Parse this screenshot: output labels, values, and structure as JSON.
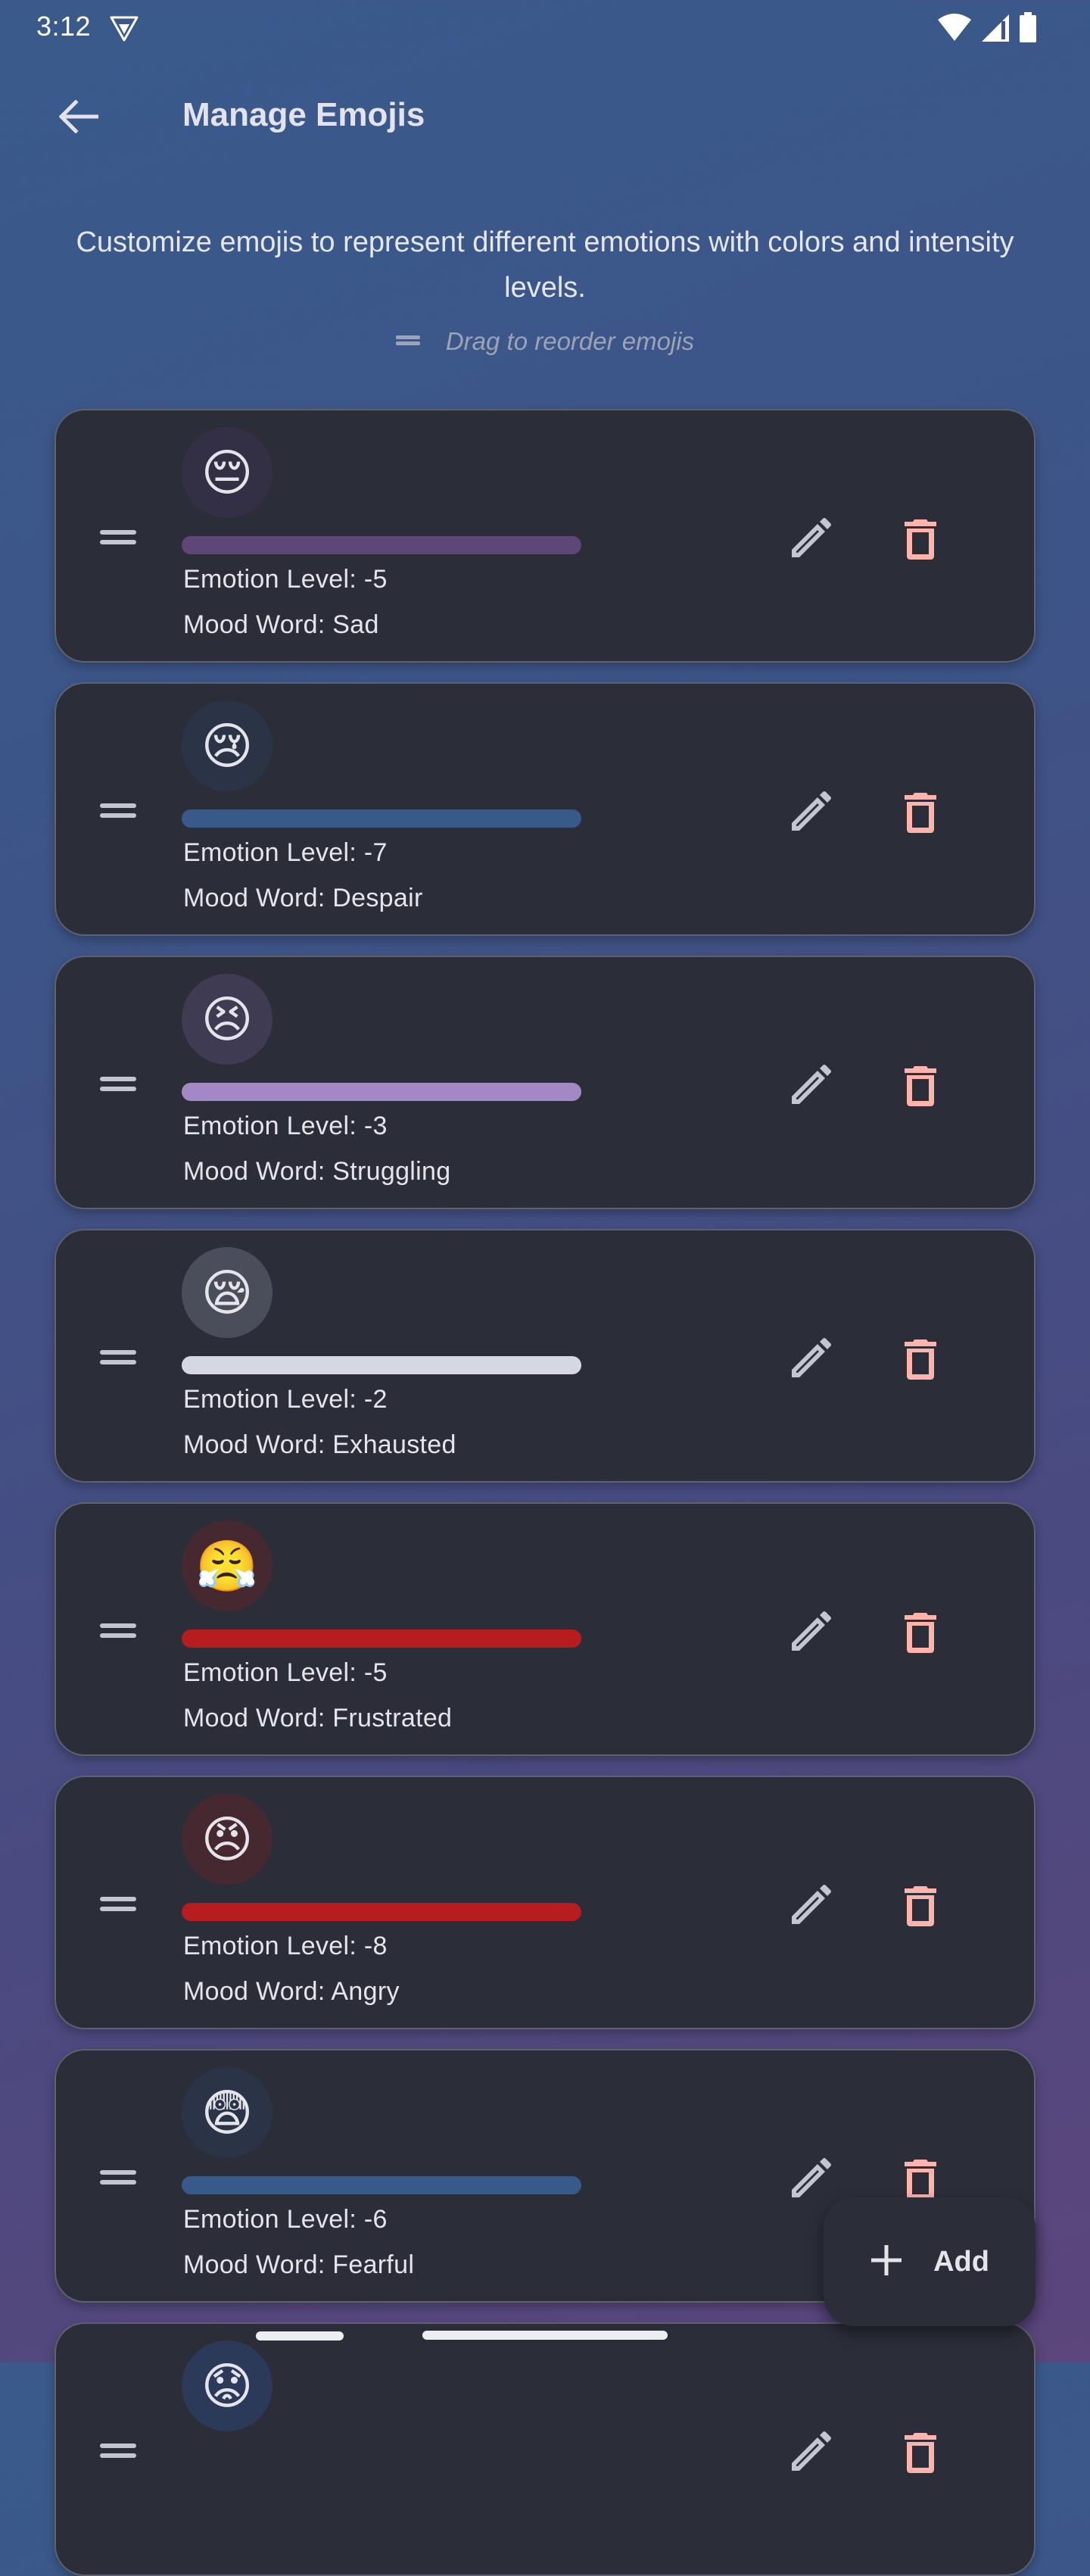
{
  "status_bar": {
    "time": "3:12",
    "icons": [
      "vpn-shield-icon",
      "wifi-icon",
      "cell-signal-icon",
      "battery-icon"
    ]
  },
  "app_bar": {
    "back_icon": "arrow-back-icon",
    "title": "Manage Emojis"
  },
  "intro": {
    "description": "Customize emojis to represent different emotions with colors and intensity levels.",
    "drag_hint": "Drag to reorder emojis",
    "drag_hint_icon": "drag-handle-icon"
  },
  "emojis": [
    {
      "emoji": "😔",
      "circle_bg": "#332f44",
      "bar_color": "#5e4676",
      "level_label": "Emotion Level: -5",
      "mood_label": "Mood Word: Sad",
      "level": -5,
      "mood": "Sad"
    },
    {
      "emoji": "😢",
      "circle_bg": "#2b3446",
      "bar_color": "#375a8a",
      "level_label": "Emotion Level: -7",
      "mood_label": "Mood Word: Despair",
      "level": -7,
      "mood": "Despair"
    },
    {
      "emoji": "😣",
      "circle_bg": "#3e3b52",
      "bar_color": "#a289c6",
      "level_label": "Emotion Level: -3",
      "mood_label": "Mood Word: Struggling",
      "level": -3,
      "mood": "Struggling"
    },
    {
      "emoji": "😪",
      "circle_bg": "#4a4e5a",
      "bar_color": "#d3d8e2",
      "level_label": "Emotion Level: -2",
      "mood_label": "Mood Word: Exhausted",
      "level": -2,
      "mood": "Exhausted"
    },
    {
      "emoji": "😤",
      "circle_bg": "#452830",
      "bar_color": "#b71c1f",
      "level_label": "Emotion Level: -5",
      "mood_label": "Mood Word: Frustrated",
      "level": -5,
      "mood": "Frustrated"
    },
    {
      "emoji": "😠",
      "circle_bg": "#452830",
      "bar_color": "#b71c1f",
      "level_label": "Emotion Level: -8",
      "mood_label": "Mood Word: Angry",
      "level": -8,
      "mood": "Angry"
    },
    {
      "emoji": "😨",
      "circle_bg": "#2b3446",
      "bar_color": "#375a8a",
      "level_label": "Emotion Level: -6",
      "mood_label": "Mood Word: Fearful",
      "level": -6,
      "mood": "Fearful"
    },
    {
      "emoji": "😟",
      "circle_bg": "#2b3a58",
      "bar_color": "#eceef2",
      "level_label": "",
      "mood_label": "",
      "level": null,
      "mood": ""
    }
  ],
  "actions": {
    "edit_icon": "pencil-icon",
    "delete_icon": "trash-icon",
    "edit_color": "#c3c6d0",
    "delete_color": "#ffb4ab"
  },
  "fab": {
    "icon": "plus-icon",
    "label": "Add"
  }
}
